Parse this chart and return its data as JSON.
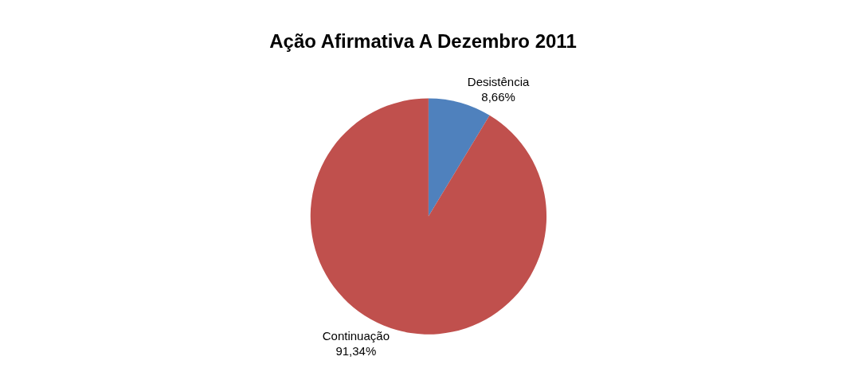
{
  "chart_data": {
    "type": "pie",
    "title": "Ação Afirmativa A Dezembro 2011",
    "categories": [
      "Desistência",
      "Continuação"
    ],
    "values": [
      8.66,
      91.34
    ],
    "value_labels": [
      "8,66%",
      "91,34%"
    ],
    "colors": [
      "#4f81bd",
      "#c0504d"
    ],
    "legend": false
  }
}
